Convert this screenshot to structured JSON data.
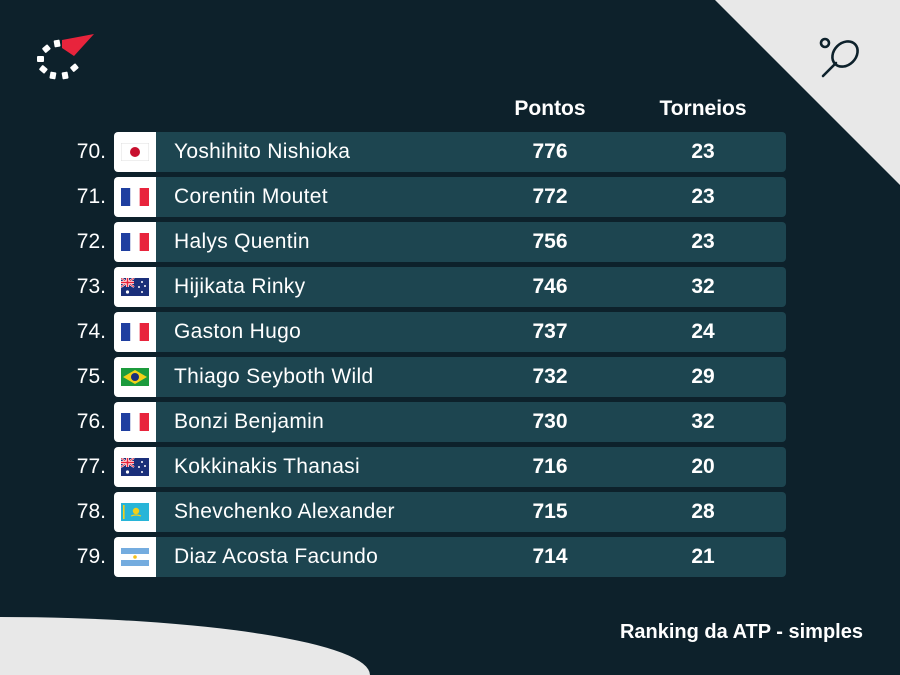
{
  "header": {
    "points_label": "Pontos",
    "tournaments_label": "Torneios"
  },
  "rows": [
    {
      "rank": "70.",
      "flag": "japan-flag-icon",
      "name": "Yoshihito Nishioka",
      "points": "776",
      "tournaments": "23"
    },
    {
      "rank": "71.",
      "flag": "france-flag-icon",
      "name": "Corentin Moutet",
      "points": "772",
      "tournaments": "23"
    },
    {
      "rank": "72.",
      "flag": "france-flag-icon",
      "name": "Halys Quentin",
      "points": "756",
      "tournaments": "23"
    },
    {
      "rank": "73.",
      "flag": "australia-flag-icon",
      "name": "Hijikata Rinky",
      "points": "746",
      "tournaments": "32"
    },
    {
      "rank": "74.",
      "flag": "france-flag-icon",
      "name": "Gaston Hugo",
      "points": "737",
      "tournaments": "24"
    },
    {
      "rank": "75.",
      "flag": "brazil-flag-icon",
      "name": "Thiago Seyboth Wild",
      "points": "732",
      "tournaments": "29"
    },
    {
      "rank": "76.",
      "flag": "france-flag-icon",
      "name": "Bonzi Benjamin",
      "points": "730",
      "tournaments": "32"
    },
    {
      "rank": "77.",
      "flag": "australia-flag-icon",
      "name": "Kokkinakis Thanasi",
      "points": "716",
      "tournaments": "20"
    },
    {
      "rank": "78.",
      "flag": "kazakhstan-flag-icon",
      "name": "Shevchenko Alexander",
      "points": "715",
      "tournaments": "28"
    },
    {
      "rank": "79.",
      "flag": "argentina-flag-icon",
      "name": "Diaz Acosta Facundo",
      "points": "714",
      "tournaments": "21"
    }
  ],
  "footer": {
    "caption": "Ranking da ATP - simples"
  },
  "colors": {
    "background": "#0d212b",
    "row_bar": "#1d4550",
    "accent": "#e8243c",
    "corner": "#e8e8e8"
  },
  "icons": {
    "logo": "flashscore-logo-icon",
    "sport": "tennis-racket-icon"
  }
}
